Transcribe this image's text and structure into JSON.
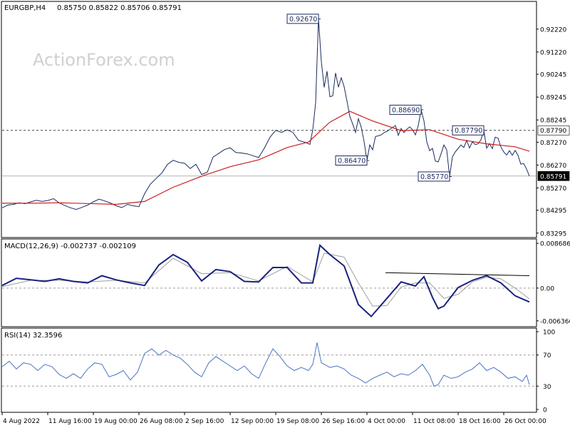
{
  "header": {
    "symbol": "EURGBP,H4",
    "ohlc": "0.85750 0.85822 0.85706 0.85791"
  },
  "watermark": "ActionForex.com",
  "chart_data": [
    {
      "type": "line",
      "panel": "price",
      "ylim": [
        0.831,
        0.934
      ],
      "y_ticks": [
        "0.92220",
        "0.91220",
        "0.90245",
        "0.89245",
        "0.88245",
        "0.87270",
        "0.86270",
        "0.85270",
        "0.84295",
        "0.83295"
      ],
      "y_tick_values": [
        0.9222,
        0.9122,
        0.90245,
        0.89245,
        0.88245,
        0.8727,
        0.8627,
        0.8527,
        0.84295,
        0.83295
      ],
      "price_close_path": [
        [
          0,
          0.844
        ],
        [
          8,
          0.8452
        ],
        [
          16,
          0.8455
        ],
        [
          24,
          0.8462
        ],
        [
          32,
          0.8458
        ],
        [
          40,
          0.8466
        ],
        [
          48,
          0.8473
        ],
        [
          56,
          0.8468
        ],
        [
          64,
          0.8472
        ],
        [
          72,
          0.848
        ],
        [
          80,
          0.8462
        ],
        [
          88,
          0.845
        ],
        [
          96,
          0.844
        ],
        [
          104,
          0.8433
        ],
        [
          112,
          0.8442
        ],
        [
          120,
          0.8452
        ],
        [
          128,
          0.8466
        ],
        [
          136,
          0.8478
        ],
        [
          144,
          0.847
        ],
        [
          152,
          0.8461
        ],
        [
          160,
          0.8449
        ],
        [
          168,
          0.8441
        ],
        [
          176,
          0.8455
        ],
        [
          184,
          0.8449
        ],
        [
          192,
          0.8445
        ],
        [
          200,
          0.8502
        ],
        [
          208,
          0.8543
        ],
        [
          216,
          0.8568
        ],
        [
          224,
          0.8592
        ],
        [
          232,
          0.863
        ],
        [
          240,
          0.8648
        ],
        [
          248,
          0.8639
        ],
        [
          256,
          0.8635
        ],
        [
          264,
          0.8612
        ],
        [
          272,
          0.8631
        ],
        [
          280,
          0.8586
        ],
        [
          288,
          0.8596
        ],
        [
          296,
          0.8662
        ],
        [
          304,
          0.8678
        ],
        [
          312,
          0.8695
        ],
        [
          320,
          0.8703
        ],
        [
          328,
          0.8682
        ],
        [
          336,
          0.868
        ],
        [
          344,
          0.8676
        ],
        [
          352,
          0.8668
        ],
        [
          360,
          0.866
        ],
        [
          368,
          0.8701
        ],
        [
          376,
          0.8749
        ],
        [
          384,
          0.8779
        ],
        [
          392,
          0.877
        ],
        [
          400,
          0.8781
        ],
        [
          408,
          0.877
        ],
        [
          416,
          0.8735
        ],
        [
          424,
          0.8728
        ],
        [
          432,
          0.8718
        ],
        [
          436,
          0.8782
        ],
        [
          440,
          0.89
        ],
        [
          444,
          0.9267
        ],
        [
          448,
          0.908
        ],
        [
          452,
          0.8967
        ],
        [
          456,
          0.9038
        ],
        [
          460,
          0.8926
        ],
        [
          464,
          0.893
        ],
        [
          468,
          0.903
        ],
        [
          472,
          0.8968
        ],
        [
          476,
          0.9009
        ],
        [
          480,
          0.897
        ],
        [
          484,
          0.8907
        ],
        [
          488,
          0.884
        ],
        [
          492,
          0.8807
        ],
        [
          496,
          0.877
        ],
        [
          500,
          0.883
        ],
        [
          504,
          0.8793
        ],
        [
          508,
          0.873
        ],
        [
          512,
          0.8647
        ],
        [
          516,
          0.8715
        ],
        [
          520,
          0.8694
        ],
        [
          524,
          0.8752
        ],
        [
          528,
          0.8755
        ],
        [
          532,
          0.8759
        ],
        [
          536,
          0.8769
        ],
        [
          540,
          0.8774
        ],
        [
          544,
          0.8783
        ],
        [
          548,
          0.8792
        ],
        [
          552,
          0.88
        ],
        [
          556,
          0.8757
        ],
        [
          560,
          0.8787
        ],
        [
          564,
          0.8769
        ],
        [
          568,
          0.8784
        ],
        [
          572,
          0.8794
        ],
        [
          576,
          0.8782
        ],
        [
          580,
          0.8759
        ],
        [
          584,
          0.8799
        ],
        [
          588,
          0.8869
        ],
        [
          592,
          0.8821
        ],
        [
          596,
          0.8729
        ],
        [
          600,
          0.869
        ],
        [
          604,
          0.87
        ],
        [
          608,
          0.8645
        ],
        [
          612,
          0.8641
        ],
        [
          616,
          0.8676
        ],
        [
          620,
          0.8715
        ],
        [
          624,
          0.8693
        ],
        [
          628,
          0.8577
        ],
        [
          632,
          0.8664
        ],
        [
          636,
          0.8685
        ],
        [
          640,
          0.87
        ],
        [
          644,
          0.8715
        ],
        [
          648,
          0.8704
        ],
        [
          652,
          0.8735
        ],
        [
          656,
          0.8702
        ],
        [
          660,
          0.8729
        ],
        [
          664,
          0.8717
        ],
        [
          668,
          0.872
        ],
        [
          672,
          0.8738
        ],
        [
          676,
          0.8779
        ],
        [
          680,
          0.8701
        ],
        [
          684,
          0.8721
        ],
        [
          688,
          0.8699
        ],
        [
          692,
          0.8749
        ],
        [
          696,
          0.8745
        ],
        [
          700,
          0.8706
        ],
        [
          704,
          0.8685
        ],
        [
          708,
          0.8671
        ],
        [
          712,
          0.869
        ],
        [
          716,
          0.867
        ],
        [
          720,
          0.8691
        ],
        [
          724,
          0.867
        ],
        [
          728,
          0.8631
        ],
        [
          732,
          0.8634
        ],
        [
          736,
          0.861
        ],
        [
          740,
          0.8579
        ]
      ],
      "moving_average_path": [
        [
          0,
          0.846
        ],
        [
          40,
          0.846
        ],
        [
          80,
          0.8462
        ],
        [
          120,
          0.8459
        ],
        [
          160,
          0.8455
        ],
        [
          200,
          0.8468
        ],
        [
          240,
          0.853
        ],
        [
          280,
          0.8578
        ],
        [
          320,
          0.862
        ],
        [
          360,
          0.865
        ],
        [
          400,
          0.8704
        ],
        [
          430,
          0.8728
        ],
        [
          460,
          0.8815
        ],
        [
          488,
          0.8862
        ],
        [
          520,
          0.882
        ],
        [
          560,
          0.8778
        ],
        [
          600,
          0.8782
        ],
        [
          640,
          0.874
        ],
        [
          680,
          0.872
        ],
        [
          720,
          0.8707
        ],
        [
          740,
          0.8688
        ]
      ],
      "annotations": [
        {
          "label": "0.92670",
          "x": 444,
          "price": 0.9267
        },
        {
          "label": "0.88690",
          "x": 588,
          "price": 0.8869
        },
        {
          "label": "0.87790",
          "x": 676,
          "price": 0.8779
        },
        {
          "label": "0.86470",
          "x": 512,
          "price": 0.8647
        },
        {
          "label": "0.85770",
          "x": 628,
          "price": 0.8577
        }
      ],
      "level_line": {
        "price": 0.8779,
        "label": "0.87790"
      },
      "current_price": {
        "price": 0.85791,
        "label": "0.85791"
      },
      "colors": {
        "price": "#1a2b5e",
        "moving_average": "#cc1f1f",
        "label_border": "#1a2b5e",
        "level_line": "#444444",
        "current_price": "#000000"
      }
    },
    {
      "type": "line",
      "panel": "macd",
      "title": "MACD(12,26,9) -0.002737 -0.002109",
      "ylim": [
        -0.0075,
        0.0094
      ],
      "y_ticks": [
        "0.008686",
        "0.00",
        "-0.006366"
      ],
      "y_tick_values": [
        0.008686,
        0.0,
        -0.006366
      ],
      "macd_path": [
        [
          0,
          0.0005
        ],
        [
          20,
          0.0019
        ],
        [
          40,
          0.0016
        ],
        [
          60,
          0.0013
        ],
        [
          80,
          0.0018
        ],
        [
          100,
          0.0013
        ],
        [
          120,
          0.001
        ],
        [
          140,
          0.0024
        ],
        [
          160,
          0.0016
        ],
        [
          180,
          0.001
        ],
        [
          200,
          0.0005
        ],
        [
          220,
          0.0045
        ],
        [
          240,
          0.0065
        ],
        [
          260,
          0.005
        ],
        [
          280,
          0.0014
        ],
        [
          300,
          0.0036
        ],
        [
          320,
          0.0032
        ],
        [
          340,
          0.0013
        ],
        [
          360,
          0.0012
        ],
        [
          380,
          0.004
        ],
        [
          400,
          0.004
        ],
        [
          420,
          0.001
        ],
        [
          436,
          0.001
        ],
        [
          446,
          0.0083
        ],
        [
          460,
          0.0065
        ],
        [
          480,
          0.0043
        ],
        [
          500,
          -0.0032
        ],
        [
          518,
          -0.0055
        ],
        [
          540,
          -0.002
        ],
        [
          560,
          0.0012
        ],
        [
          580,
          0.0004
        ],
        [
          592,
          0.0022
        ],
        [
          604,
          -0.0018
        ],
        [
          612,
          -0.004
        ],
        [
          620,
          -0.0035
        ],
        [
          640,
          0.0001
        ],
        [
          660,
          0.0015
        ],
        [
          680,
          0.0024
        ],
        [
          700,
          0.001
        ],
        [
          720,
          -0.0015
        ],
        [
          740,
          -0.0027
        ]
      ],
      "signal_path": [
        [
          0,
          0.0003
        ],
        [
          40,
          0.0015
        ],
        [
          80,
          0.0015
        ],
        [
          120,
          0.0012
        ],
        [
          160,
          0.0015
        ],
        [
          200,
          0.001
        ],
        [
          240,
          0.0058
        ],
        [
          280,
          0.0028
        ],
        [
          320,
          0.003
        ],
        [
          360,
          0.0014
        ],
        [
          400,
          0.0042
        ],
        [
          436,
          0.0012
        ],
        [
          452,
          0.0068
        ],
        [
          480,
          0.006
        ],
        [
          500,
          0.001
        ],
        [
          520,
          -0.0035
        ],
        [
          540,
          -0.0034
        ],
        [
          560,
          0.0002
        ],
        [
          580,
          0.001
        ],
        [
          600,
          0.001
        ],
        [
          620,
          -0.002
        ],
        [
          640,
          -0.0012
        ],
        [
          660,
          0.0012
        ],
        [
          680,
          0.0021
        ],
        [
          700,
          0.0018
        ],
        [
          720,
          0.0
        ],
        [
          740,
          -0.0021
        ]
      ],
      "trendline": [
        [
          538,
          0.003
        ],
        [
          740,
          0.0024
        ]
      ],
      "colors": {
        "macd": "#1a237e",
        "signal": "#9e9e9e",
        "trendline": "#000000"
      }
    },
    {
      "type": "line",
      "panel": "rsi",
      "title": "RSI(14) 32.3596",
      "ylim": [
        0,
        100
      ],
      "y_ticks": [
        "100",
        "70",
        "30",
        "0"
      ],
      "y_tick_values": [
        100,
        70,
        30,
        0
      ],
      "rsi_path": [
        [
          0,
          55
        ],
        [
          10,
          62
        ],
        [
          20,
          52
        ],
        [
          30,
          60
        ],
        [
          40,
          58
        ],
        [
          50,
          50
        ],
        [
          60,
          58
        ],
        [
          70,
          55
        ],
        [
          80,
          45
        ],
        [
          90,
          40
        ],
        [
          100,
          46
        ],
        [
          110,
          40
        ],
        [
          120,
          52
        ],
        [
          130,
          60
        ],
        [
          140,
          58
        ],
        [
          150,
          42
        ],
        [
          160,
          45
        ],
        [
          170,
          50
        ],
        [
          180,
          38
        ],
        [
          190,
          48
        ],
        [
          200,
          72
        ],
        [
          210,
          78
        ],
        [
          220,
          70
        ],
        [
          230,
          76
        ],
        [
          240,
          70
        ],
        [
          250,
          66
        ],
        [
          260,
          58
        ],
        [
          270,
          48
        ],
        [
          280,
          42
        ],
        [
          290,
          60
        ],
        [
          300,
          68
        ],
        [
          310,
          62
        ],
        [
          320,
          56
        ],
        [
          330,
          50
        ],
        [
          340,
          56
        ],
        [
          350,
          46
        ],
        [
          360,
          40
        ],
        [
          370,
          60
        ],
        [
          380,
          78
        ],
        [
          390,
          68
        ],
        [
          400,
          56
        ],
        [
          410,
          50
        ],
        [
          420,
          54
        ],
        [
          430,
          50
        ],
        [
          436,
          58
        ],
        [
          442,
          86
        ],
        [
          448,
          60
        ],
        [
          460,
          54
        ],
        [
          470,
          56
        ],
        [
          480,
          52
        ],
        [
          490,
          44
        ],
        [
          500,
          40
        ],
        [
          510,
          34
        ],
        [
          520,
          40
        ],
        [
          530,
          44
        ],
        [
          540,
          48
        ],
        [
          550,
          42
        ],
        [
          560,
          46
        ],
        [
          570,
          44
        ],
        [
          580,
          50
        ],
        [
          590,
          58
        ],
        [
          600,
          44
        ],
        [
          606,
          30
        ],
        [
          612,
          32
        ],
        [
          620,
          44
        ],
        [
          630,
          40
        ],
        [
          640,
          42
        ],
        [
          650,
          48
        ],
        [
          660,
          52
        ],
        [
          670,
          60
        ],
        [
          680,
          50
        ],
        [
          690,
          54
        ],
        [
          700,
          48
        ],
        [
          710,
          40
        ],
        [
          720,
          42
        ],
        [
          730,
          36
        ],
        [
          736,
          44
        ],
        [
          740,
          32
        ]
      ],
      "colors": {
        "rsi": "#4a73c4",
        "level_lines": "#9e9e9e"
      }
    }
  ],
  "x_axis": {
    "labels": [
      "4 Aug 2022",
      "11 Aug 16:00",
      "19 Aug 00:00",
      "26 Aug 08:00",
      "2 Sep 16:00",
      "12 Sep 00:00",
      "19 Sep 08:00",
      "26 Sep 16:00",
      "4 Oct 00:00",
      "11 Oct 08:00",
      "18 Oct 16:00",
      "26 Oct 00:00"
    ]
  }
}
